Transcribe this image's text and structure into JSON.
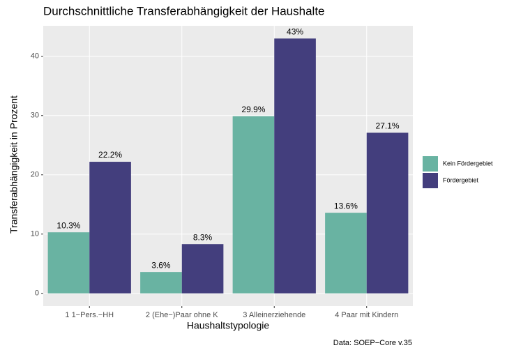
{
  "chart_data": {
    "type": "bar",
    "title": "Durchschnittliche Transferabhängigkeit der Haushalte",
    "x_label": "Haushaltstypologie",
    "y_label": "Transferabhängigkeit in Prozent",
    "caption": "Data: SOEP−Core v.35",
    "categories": [
      "1 1−Pers.−HH",
      "2 (Ehe−)Paar ohne K",
      "3 Alleinerziehende",
      "4 Paar mit Kindern"
    ],
    "series": [
      {
        "name": "Kein Fördergebiet",
        "color": "#69b3a2",
        "values": [
          10.3,
          3.6,
          29.9,
          13.6
        ],
        "value_labels": [
          "10.3%",
          "3.6%",
          "29.9%",
          "13.6%"
        ]
      },
      {
        "name": "Fördergebiet",
        "color": "#433e7d",
        "values": [
          22.2,
          8.3,
          43,
          27.1
        ],
        "value_labels": [
          "22.2%",
          "8.3%",
          "43%",
          "27.1%"
        ]
      }
    ],
    "ylim": [
      -2.15,
      45.15
    ],
    "yticks": [
      0,
      10,
      20,
      30,
      40
    ],
    "grid": true,
    "legend": "right"
  }
}
